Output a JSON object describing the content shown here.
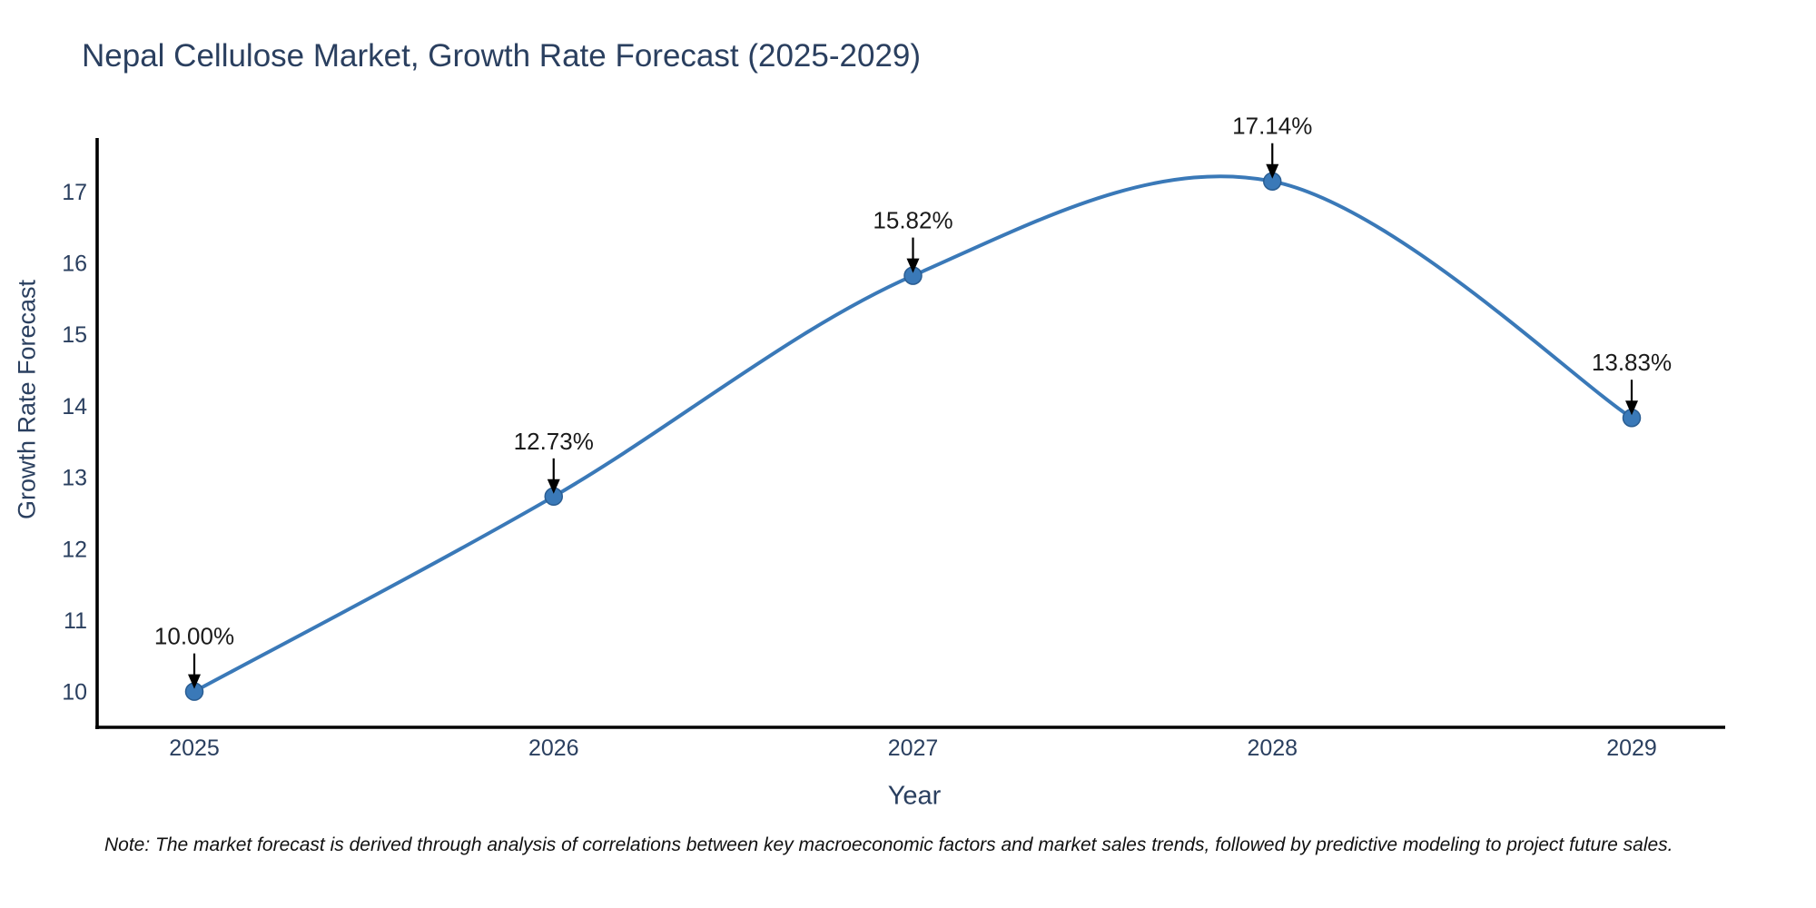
{
  "note": "Note: The market forecast is derived through analysis of correlations between key macroeconomic factors and market sales trends, followed by predictive modeling to project future sales.",
  "chart_data": {
    "type": "line",
    "title": "Nepal Cellulose Market, Growth Rate Forecast (2025-2029)",
    "xlabel": "Year",
    "ylabel": "Growth Rate Forecast",
    "x": [
      2025,
      2026,
      2027,
      2028,
      2029
    ],
    "y": [
      10.0,
      12.73,
      15.82,
      17.14,
      13.83
    ],
    "point_labels": [
      "10.00%",
      "12.73%",
      "15.82%",
      "17.14%",
      "13.83%"
    ],
    "xticks": [
      "2025",
      "2026",
      "2027",
      "2028",
      "2029"
    ],
    "yticks": [
      10,
      11,
      12,
      13,
      14,
      15,
      16,
      17
    ],
    "ylim": [
      9.5,
      17.75
    ],
    "line_shape": "spline",
    "grid": false,
    "legend": false,
    "colors": {
      "line": "#3a79b8",
      "marker": "#3a79b8",
      "marker_edge": "#2a5d92",
      "axis": "#000000",
      "tick_label": "#2a3f5f",
      "title": "#2a3f5f",
      "annotation_text": "#1a1a1a",
      "arrow": "#000000"
    }
  }
}
